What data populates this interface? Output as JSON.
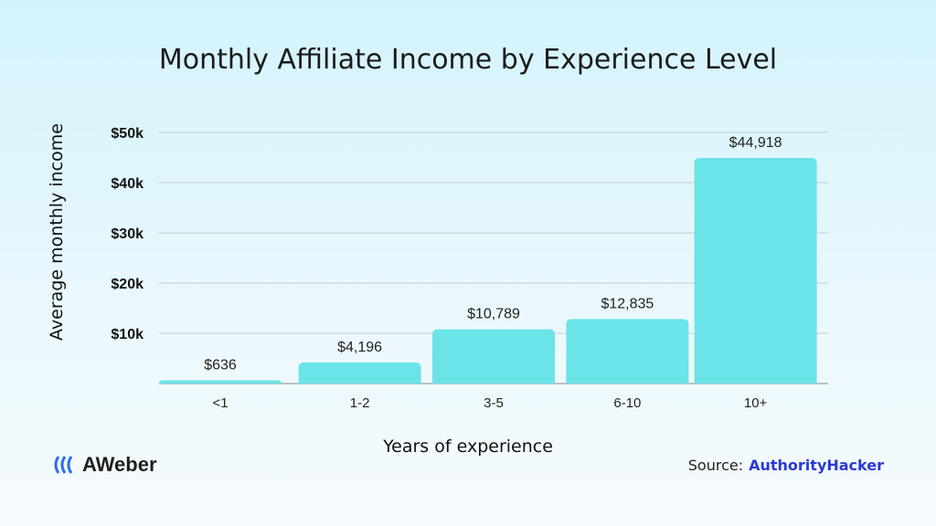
{
  "chart_data": {
    "type": "bar",
    "title": "Monthly Affiliate Income by Experience Level",
    "xlabel": "Years of experience",
    "ylabel": "Average monthly income",
    "categories": [
      "<1",
      "1-2",
      "3-5",
      "6-10",
      "10+"
    ],
    "values": [
      636,
      4196,
      10789,
      12835,
      44918
    ],
    "data_labels": [
      "$636",
      "$4,196",
      "$10,789",
      "$12,835",
      "$44,918"
    ],
    "ylim": [
      0,
      50000
    ],
    "yticks": [
      10000,
      20000,
      30000,
      40000,
      50000
    ],
    "ytick_labels": [
      "$10k",
      "$20k",
      "$30k",
      "$40k",
      "$50k"
    ],
    "grid": true,
    "bar_color": "#6be4e8"
  },
  "branding": {
    "logo": "AWeber",
    "source_label": "Source:",
    "source_name": "AuthorityHacker"
  }
}
